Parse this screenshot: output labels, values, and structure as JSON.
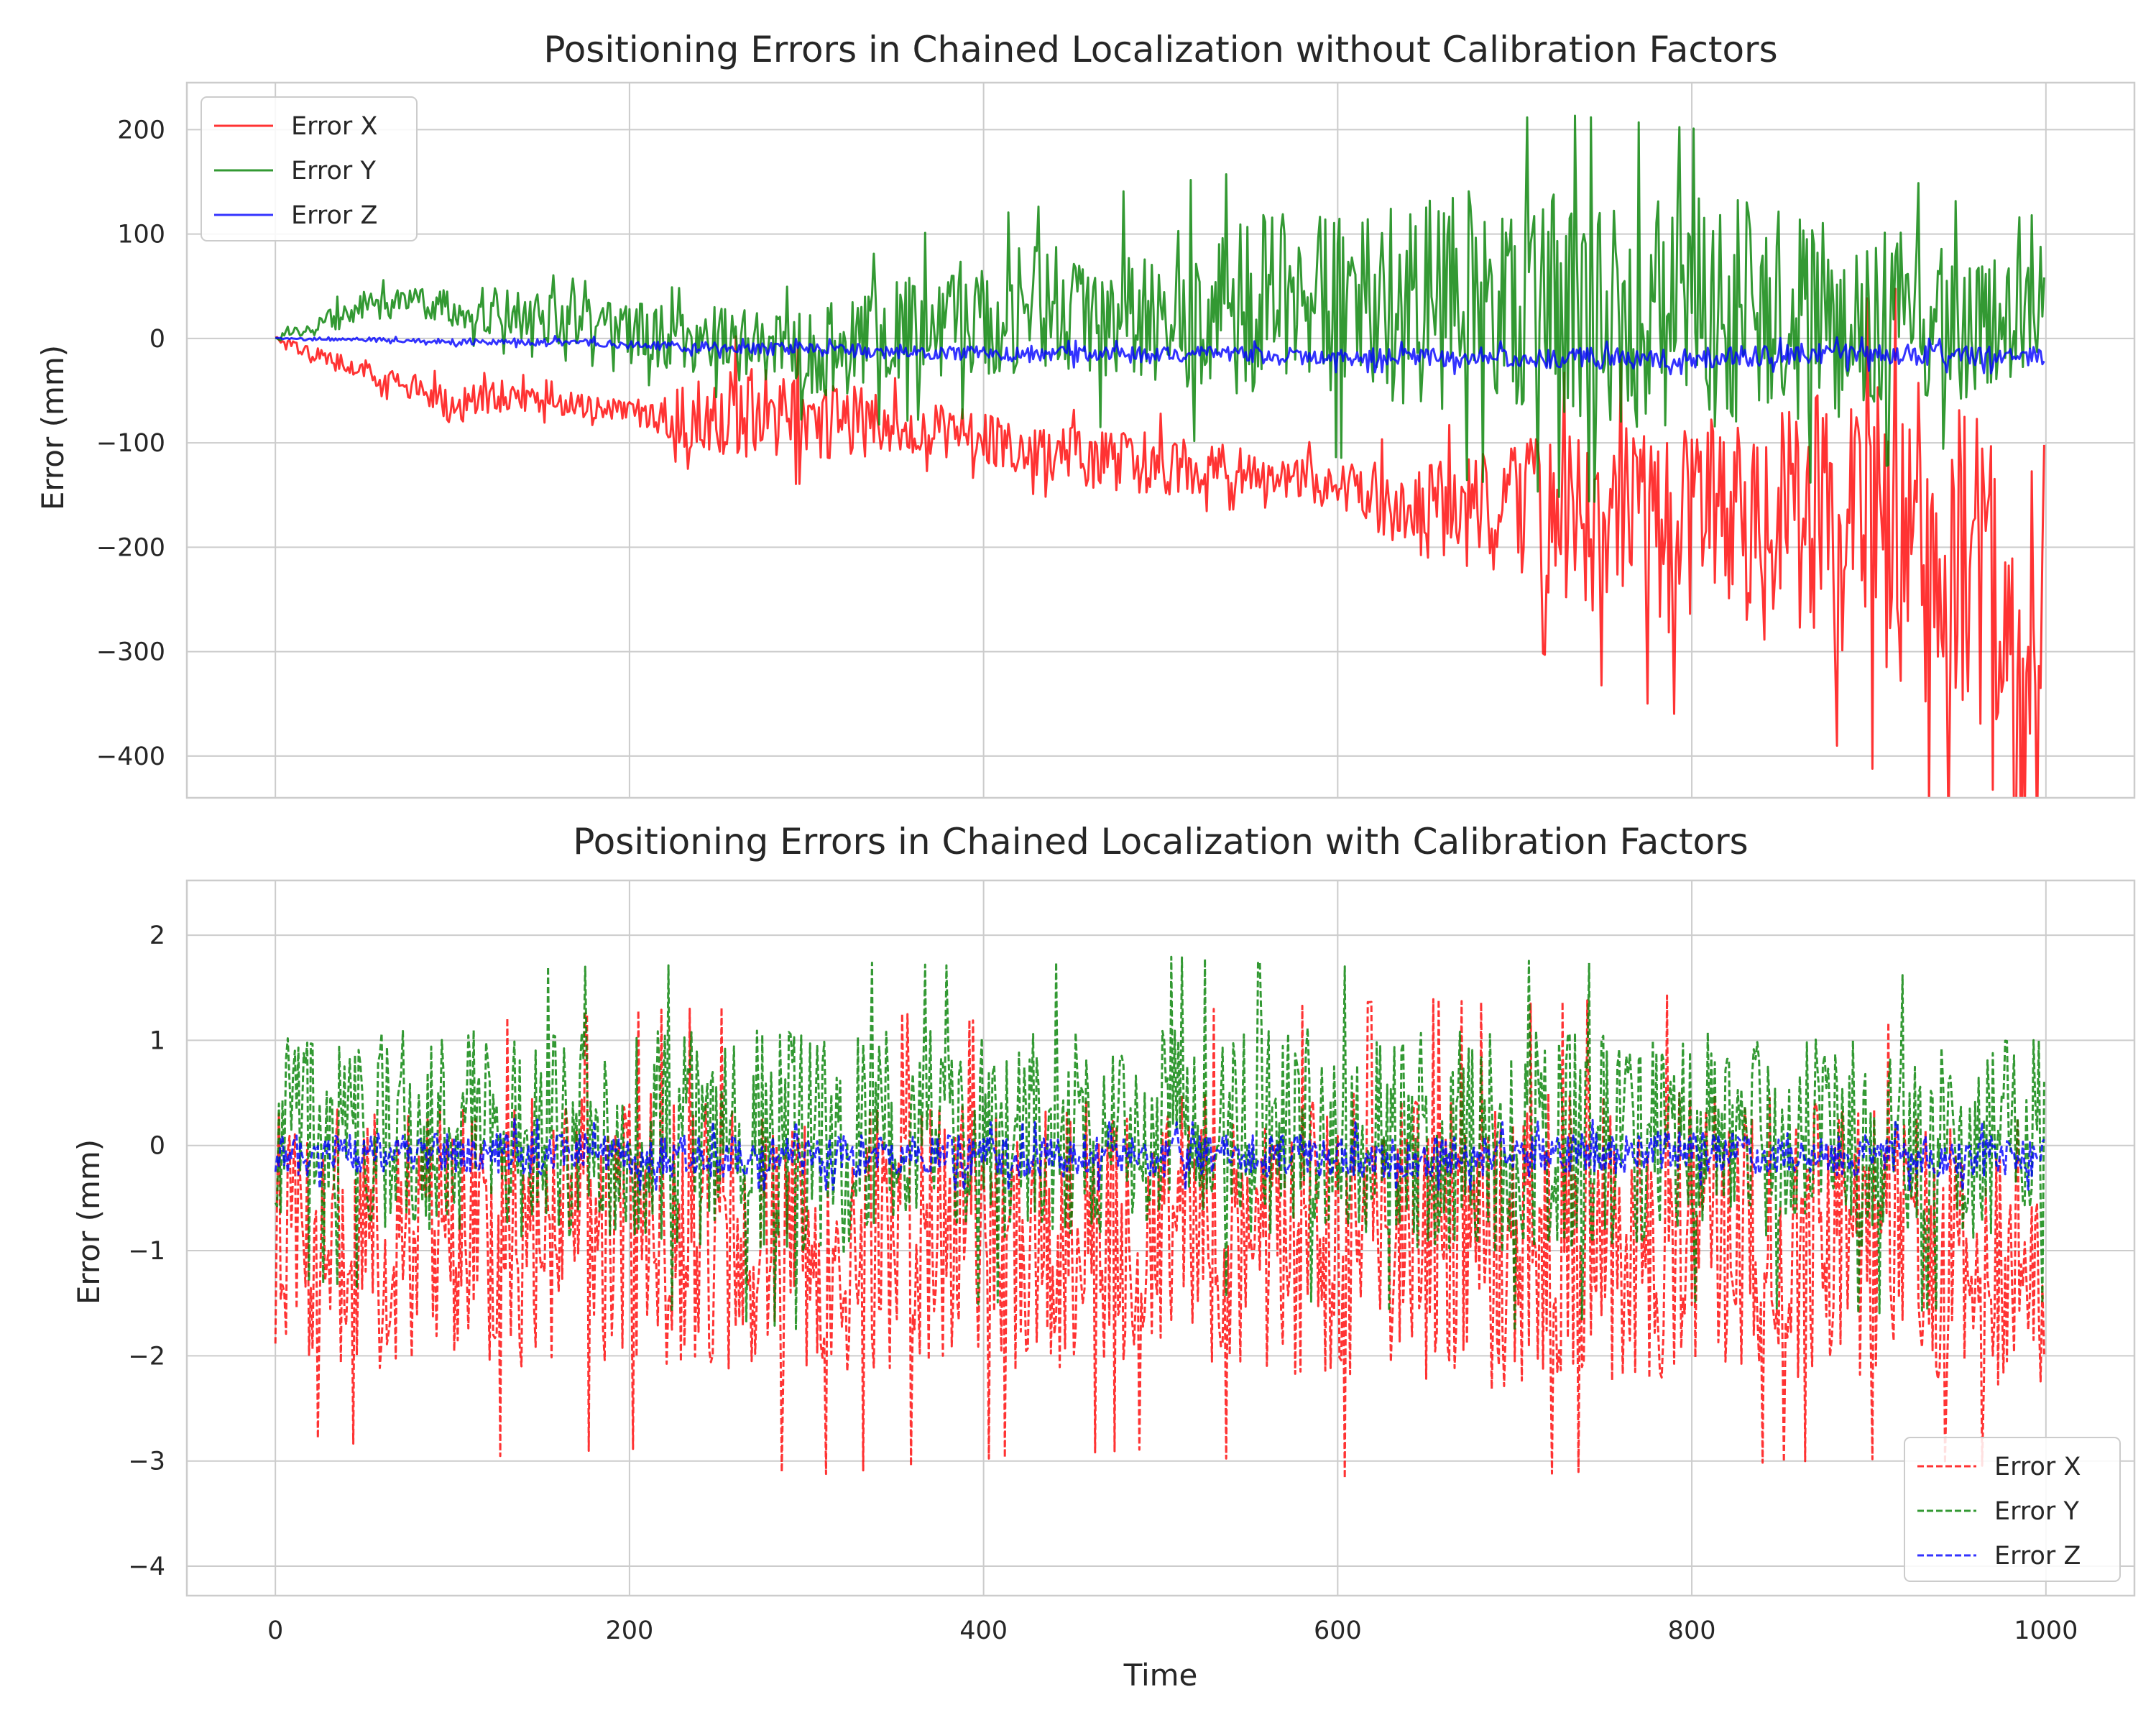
{
  "chart_data": [
    {
      "type": "line",
      "title": "Positioning Errors in Chained Localization without Calibration Factors",
      "xlabel": "",
      "ylabel": "Error (mm)",
      "xlim": [
        -50,
        1050
      ],
      "ylim": [
        -440,
        245
      ],
      "xticks": [
        0,
        200,
        400,
        600,
        800,
        1000
      ],
      "yticks": [
        -400,
        -300,
        -200,
        -100,
        0,
        100,
        200
      ],
      "ytick_labels": [
        "−400",
        "−300",
        "−200",
        "−100",
        "0",
        "100",
        "200"
      ],
      "show_x_tick_labels": false,
      "grid": true,
      "legend": "upper-left",
      "line_style": "solid",
      "series": [
        {
          "name": "Error X",
          "color": "#ff0000",
          "x": [
            0,
            20,
            50,
            80,
            100,
            130,
            160,
            190,
            200,
            230,
            260,
            300,
            330,
            360,
            400,
            430,
            470,
            500,
            530,
            560,
            600,
            630,
            660,
            700,
            730,
            760,
            800,
            830,
            860,
            900,
            930,
            960,
            985,
            999
          ],
          "y": [
            0,
            -15,
            -30,
            -50,
            -65,
            -55,
            -62,
            -68,
            -70,
            -75,
            -70,
            -75,
            -80,
            -85,
            -95,
            -110,
            -115,
            -120,
            -125,
            -130,
            -140,
            -160,
            -165,
            -170,
            -175,
            -180,
            -190,
            -180,
            -175,
            -185,
            -200,
            -210,
            -405,
            -150
          ],
          "band": [
            2,
            8,
            10,
            15,
            18,
            15,
            12,
            10,
            10,
            30,
            45,
            40,
            35,
            25,
            25,
            25,
            30,
            30,
            25,
            20,
            25,
            40,
            50,
            70,
            90,
            100,
            110,
            110,
            120,
            140,
            160,
            180,
            200,
            150
          ]
        },
        {
          "name": "Error Y",
          "color": "#008000",
          "x": [
            0,
            20,
            50,
            80,
            100,
            130,
            160,
            190,
            200,
            230,
            260,
            300,
            330,
            360,
            400,
            430,
            470,
            500,
            530,
            560,
            600,
            630,
            660,
            700,
            730,
            760,
            800,
            830,
            860,
            900,
            930,
            960,
            985,
            999
          ],
          "y": [
            0,
            10,
            30,
            35,
            30,
            25,
            20,
            10,
            5,
            0,
            -5,
            -15,
            -5,
            10,
            20,
            30,
            25,
            30,
            25,
            35,
            30,
            40,
            35,
            35,
            30,
            25,
            25,
            25,
            20,
            15,
            20,
            10,
            20,
            40
          ],
          "band": [
            2,
            10,
            15,
            15,
            20,
            25,
            25,
            25,
            30,
            30,
            35,
            40,
            50,
            55,
            60,
            60,
            70,
            75,
            80,
            85,
            90,
            100,
            105,
            110,
            115,
            115,
            110,
            110,
            100,
            90,
            80,
            70,
            60,
            50
          ]
        },
        {
          "name": "Error Z",
          "color": "#0000ff",
          "x": [
            0,
            20,
            50,
            80,
            100,
            130,
            160,
            190,
            200,
            230,
            260,
            300,
            330,
            360,
            400,
            430,
            470,
            500,
            530,
            560,
            600,
            630,
            660,
            700,
            730,
            760,
            800,
            830,
            860,
            900,
            930,
            960,
            985,
            999
          ],
          "y": [
            0,
            -1,
            -1,
            -2,
            -3,
            -3,
            -4,
            -5,
            -6,
            -8,
            -10,
            -10,
            -12,
            -13,
            -14,
            -15,
            -15,
            -16,
            -16,
            -17,
            -18,
            -18,
            -18,
            -19,
            -19,
            -19,
            -18,
            -17,
            -15,
            -15,
            -16,
            -17,
            -18,
            -18
          ],
          "band": [
            1,
            1,
            2,
            2,
            3,
            3,
            4,
            4,
            4,
            5,
            6,
            6,
            7,
            7,
            7,
            8,
            8,
            8,
            8,
            9,
            9,
            9,
            10,
            10,
            10,
            10,
            10,
            10,
            10,
            10,
            10,
            10,
            10,
            10
          ]
        }
      ]
    },
    {
      "type": "line",
      "title": "Positioning Errors in Chained Localization with Calibration Factors",
      "xlabel": "Time",
      "ylabel": "Error (mm)",
      "xlim": [
        -50,
        1050
      ],
      "ylim": [
        -4.28,
        2.52
      ],
      "xticks": [
        0,
        200,
        400,
        600,
        800,
        1000
      ],
      "yticks": [
        -4,
        -3,
        -2,
        -1,
        0,
        1,
        2
      ],
      "ytick_labels": [
        "−4",
        "−3",
        "−2",
        "−1",
        "0",
        "1",
        "2"
      ],
      "show_x_tick_labels": true,
      "grid": true,
      "legend": "lower-right",
      "line_style": "dashed",
      "series": [
        {
          "name": "Error X",
          "color": "#ff0000",
          "x": [
            0,
            100,
            200,
            300,
            400,
            500,
            600,
            645,
            700,
            800,
            900,
            999
          ],
          "y": [
            -0.8,
            -0.9,
            -0.8,
            -0.9,
            -0.9,
            -0.8,
            -0.9,
            -1.0,
            -0.9,
            -0.8,
            -0.9,
            -1.0
          ],
          "band": [
            1.2,
            1.3,
            1.3,
            1.4,
            1.3,
            1.3,
            1.4,
            1.5,
            1.4,
            1.4,
            1.3,
            1.3
          ]
        },
        {
          "name": "Error Y",
          "color": "#008000",
          "x": [
            0,
            100,
            200,
            300,
            400,
            500,
            600,
            700,
            800,
            900,
            999
          ],
          "y": [
            0.2,
            0.1,
            0.1,
            0.0,
            0.1,
            0.2,
            0.1,
            0.0,
            0.1,
            0.0,
            0.1
          ],
          "band": [
            0.9,
            1.0,
            1.0,
            1.1,
            1.0,
            1.0,
            1.0,
            1.1,
            1.0,
            1.0,
            1.0
          ]
        },
        {
          "name": "Error Z",
          "color": "#0000ff",
          "x": [
            0,
            100,
            200,
            300,
            400,
            500,
            600,
            700,
            800,
            900,
            999
          ],
          "y": [
            -0.1,
            -0.05,
            -0.1,
            -0.1,
            -0.1,
            -0.1,
            -0.1,
            -0.1,
            -0.05,
            -0.1,
            -0.1
          ],
          "band": [
            0.2,
            0.2,
            0.2,
            0.2,
            0.2,
            0.2,
            0.2,
            0.2,
            0.2,
            0.2,
            0.2
          ]
        }
      ]
    }
  ]
}
